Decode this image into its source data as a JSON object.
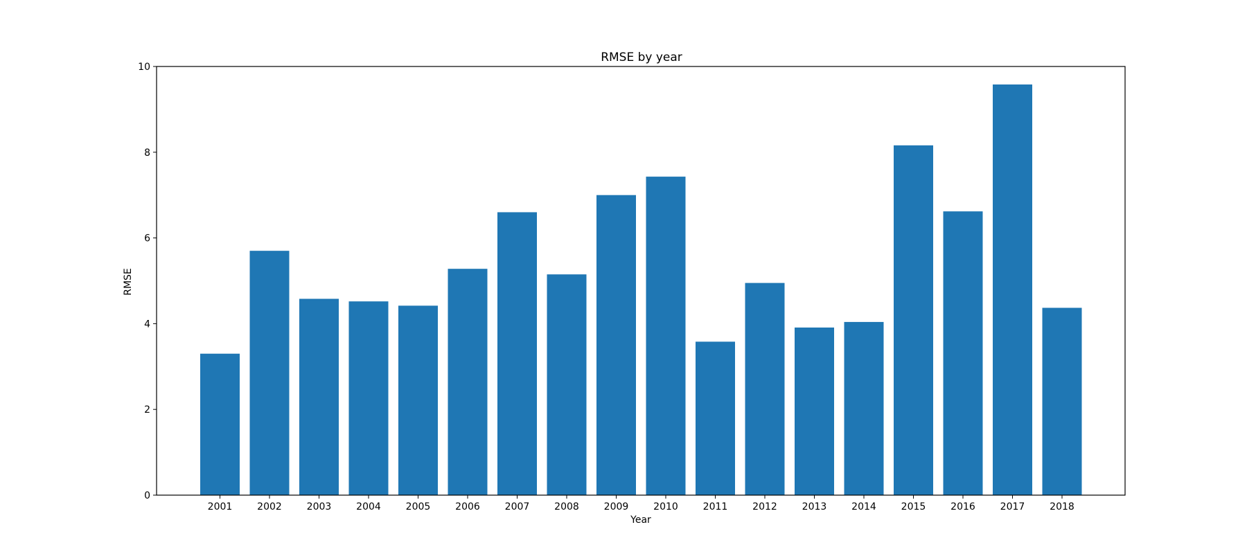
{
  "chart_data": {
    "type": "bar",
    "title": "RMSE by year",
    "xlabel": "Year",
    "ylabel": "RMSE",
    "categories": [
      "2001",
      "2002",
      "2003",
      "2004",
      "2005",
      "2006",
      "2007",
      "2008",
      "2009",
      "2010",
      "2011",
      "2012",
      "2013",
      "2014",
      "2015",
      "2016",
      "2017",
      "2018"
    ],
    "values": [
      3.3,
      5.7,
      4.58,
      4.52,
      4.42,
      5.28,
      6.6,
      5.15,
      7.0,
      7.43,
      3.58,
      4.95,
      3.91,
      4.04,
      8.16,
      6.62,
      9.58,
      4.37
    ],
    "ylim": [
      0,
      10
    ],
    "yticks": [
      "0",
      "2",
      "4",
      "6",
      "8",
      "10"
    ],
    "grid": false,
    "bar_color": "#1f77b4"
  }
}
